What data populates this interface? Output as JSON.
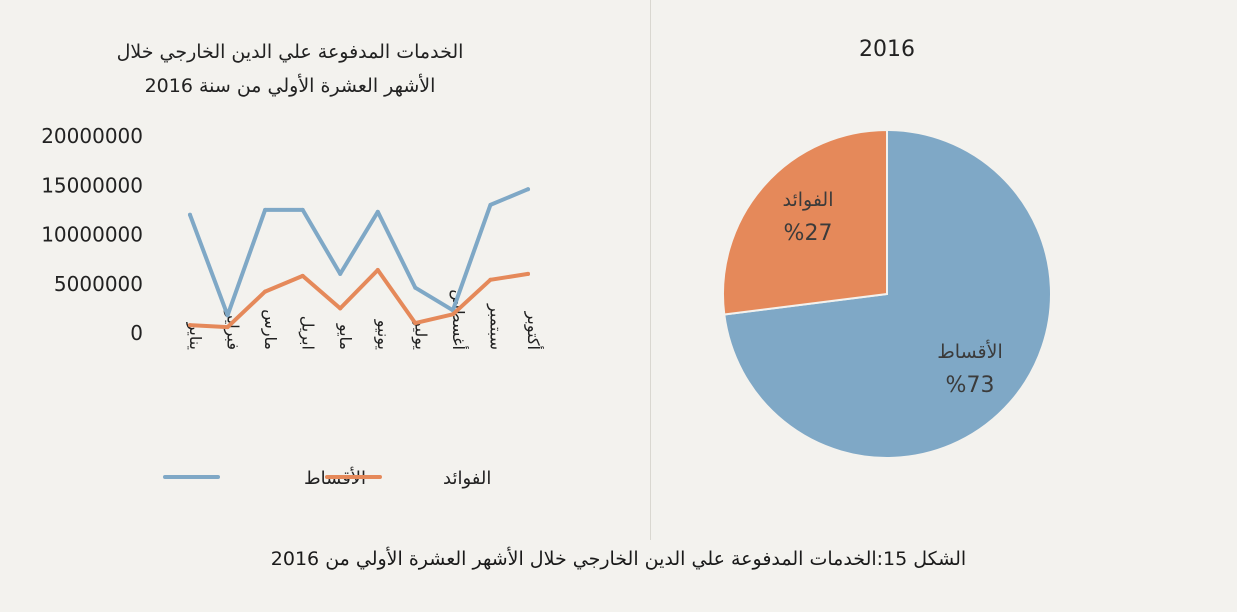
{
  "caption": "الشكل 15:الخدمات المدفوعة علي الدين الخارجي خلال الأشهر العشرة الأولي من 2016",
  "chart_data": [
    {
      "type": "line",
      "title_line1": "الخدمات المدفوعة علي الدين الخارجي خلال",
      "title_line2": "الأشهر العشرة الأولي من سنة 2016",
      "categories": [
        "يناير",
        "فبراير",
        "مارس",
        "ابريل",
        "مايو",
        "يونيو",
        "يوليو",
        "أغسطس",
        "سبتمبر",
        "أكتوبر"
      ],
      "y_ticks": [
        "20000000",
        "15000000",
        "10000000",
        "5000000",
        "0"
      ],
      "ylim": [
        0,
        20000000
      ],
      "grid": false,
      "legend_position": "bottom",
      "series": [
        {
          "name": "الأقساط",
          "color": "#7fa8c6",
          "values": [
            12000000,
            1800000,
            12500000,
            12500000,
            6000000,
            12300000,
            4600000,
            2300000,
            13000000,
            14600000
          ]
        },
        {
          "name": "الفوائد",
          "color": "#e5895a",
          "values": [
            800000,
            600000,
            4200000,
            5800000,
            2500000,
            6400000,
            1000000,
            1900000,
            5400000,
            6000000
          ]
        }
      ]
    },
    {
      "type": "pie",
      "title": "2016",
      "slices": [
        {
          "label": "الأقساط",
          "value": 73,
          "value_label": "%73",
          "color": "#7fa8c6"
        },
        {
          "label": "الفوائد",
          "value": 27,
          "value_label": "%27",
          "color": "#e5895a"
        }
      ]
    }
  ]
}
